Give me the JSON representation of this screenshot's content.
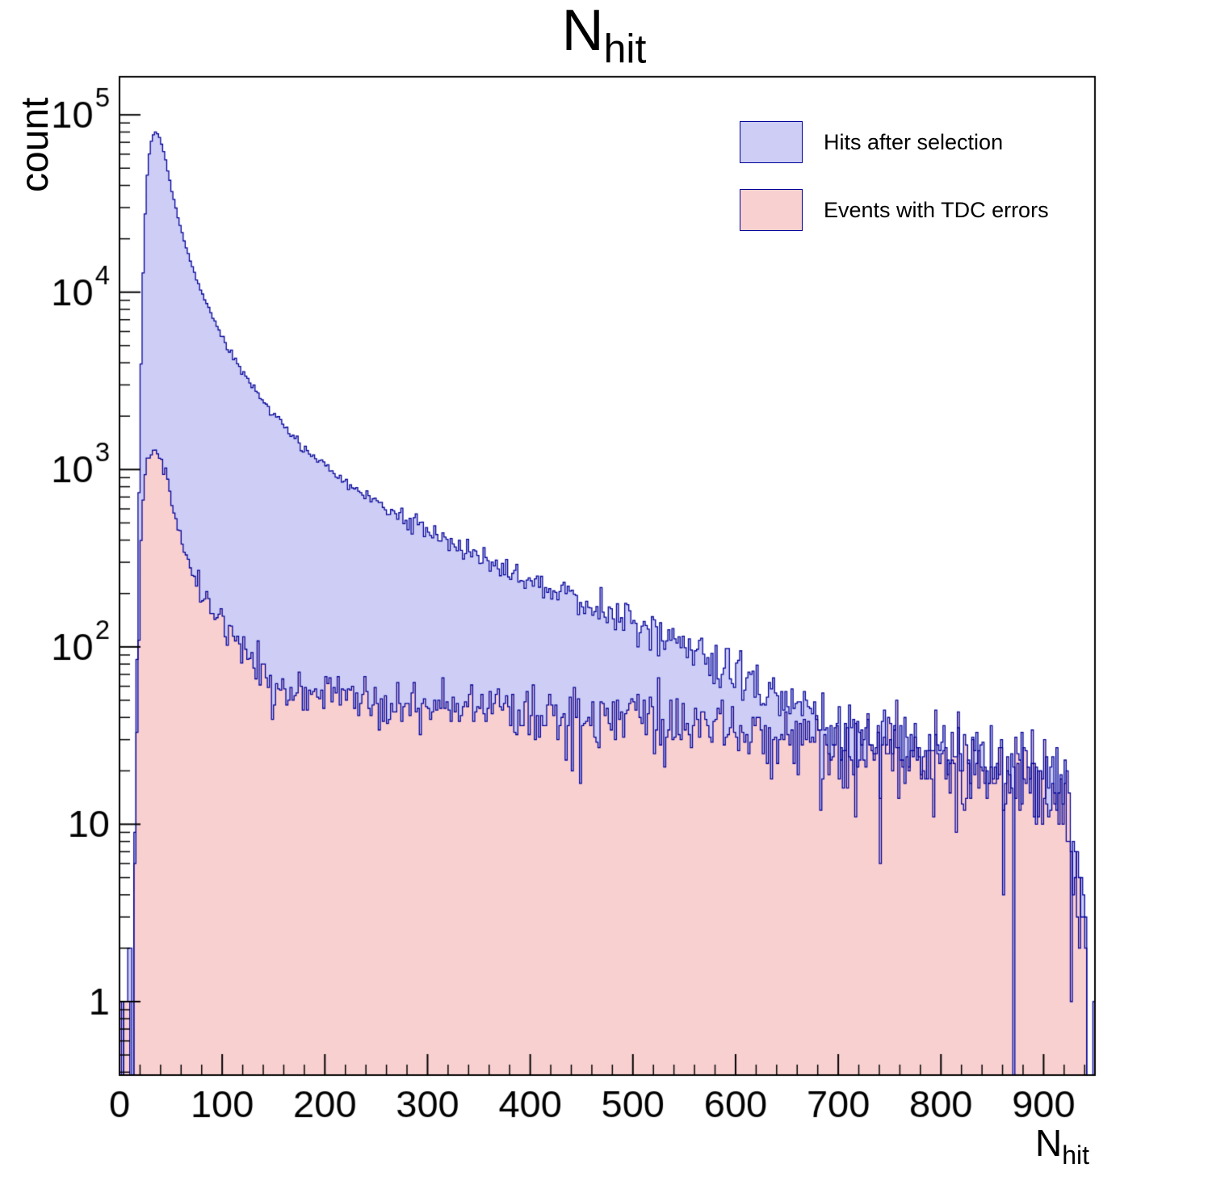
{
  "title": {
    "main": "N",
    "sub": "hit"
  },
  "y_axis_label": "count",
  "x_axis_label": {
    "main": "N",
    "sub": "hit"
  },
  "legend": {
    "items": [
      {
        "label": "Hits after selection",
        "fill": "#cdcdf5",
        "stroke": "#000099"
      },
      {
        "label": "Events with TDC errors",
        "fill": "#f9d0d0",
        "stroke": "#000099"
      }
    ]
  },
  "chart_data": {
    "type": "histogram",
    "title": "N_hit",
    "xlabel": "N_hit",
    "ylabel": "count",
    "y_scale": "log",
    "xlim": [
      0,
      950
    ],
    "ylim": [
      0.385,
      164000
    ],
    "x_ticks": [
      0,
      100,
      200,
      300,
      400,
      500,
      600,
      700,
      800,
      900
    ],
    "x_minor_step": 20,
    "y_ticks_exponents": [
      0,
      1,
      2,
      3,
      4,
      5
    ],
    "bin_width": 2,
    "noise_model": "poisson",
    "noise_scale": 1.35,
    "axis_color": "#000000",
    "series": [
      {
        "name": "Hits after selection",
        "fill": "#cdcdf5",
        "stroke": "#000099",
        "seed": 20,
        "anchors": [
          [
            3,
            0.4
          ],
          [
            6,
            0.8
          ],
          [
            9,
            0.5
          ],
          [
            12,
            0.7
          ],
          [
            14,
            2
          ],
          [
            16,
            25
          ],
          [
            18,
            300
          ],
          [
            20,
            2000
          ],
          [
            22,
            8000
          ],
          [
            24,
            20000
          ],
          [
            26,
            38000
          ],
          [
            28,
            55000
          ],
          [
            30,
            67000
          ],
          [
            32,
            75000
          ],
          [
            34,
            79000
          ],
          [
            36,
            80000
          ],
          [
            38,
            77000
          ],
          [
            40,
            72000
          ],
          [
            43,
            62000
          ],
          [
            46,
            52000
          ],
          [
            50,
            40000
          ],
          [
            54,
            31500
          ],
          [
            58,
            25000
          ],
          [
            62,
            20500
          ],
          [
            66,
            17000
          ],
          [
            70,
            14500
          ],
          [
            75,
            12000
          ],
          [
            80,
            10000
          ],
          [
            85,
            8500
          ],
          [
            90,
            7300
          ],
          [
            95,
            6350
          ],
          [
            100,
            5600
          ],
          [
            110,
            4400
          ],
          [
            120,
            3550
          ],
          [
            130,
            2950
          ],
          [
            140,
            2450
          ],
          [
            150,
            2080
          ],
          [
            160,
            1780
          ],
          [
            170,
            1530
          ],
          [
            180,
            1330
          ],
          [
            190,
            1170
          ],
          [
            200,
            1040
          ],
          [
            215,
            890
          ],
          [
            230,
            775
          ],
          [
            245,
            680
          ],
          [
            260,
            605
          ],
          [
            275,
            540
          ],
          [
            290,
            485
          ],
          [
            305,
            440
          ],
          [
            320,
            395
          ],
          [
            335,
            355
          ],
          [
            350,
            320
          ],
          [
            365,
            292
          ],
          [
            380,
            268
          ],
          [
            395,
            247
          ],
          [
            410,
            228
          ],
          [
            425,
            210
          ],
          [
            440,
            193
          ],
          [
            455,
            177
          ],
          [
            470,
            162
          ],
          [
            485,
            148
          ],
          [
            500,
            135
          ],
          [
            515,
            123
          ],
          [
            530,
            112
          ],
          [
            545,
            102
          ],
          [
            560,
            93
          ],
          [
            575,
            85
          ],
          [
            590,
            77
          ],
          [
            605,
            70
          ],
          [
            620,
            60
          ],
          [
            640,
            52
          ],
          [
            660,
            45
          ],
          [
            680,
            39
          ],
          [
            700,
            34
          ],
          [
            720,
            31
          ],
          [
            740,
            29
          ],
          [
            760,
            28
          ],
          [
            780,
            26
          ],
          [
            800,
            25
          ],
          [
            820,
            23
          ],
          [
            840,
            22
          ],
          [
            860,
            21
          ],
          [
            880,
            20
          ],
          [
            900,
            19
          ],
          [
            910,
            18
          ],
          [
            918,
            16
          ],
          [
            925,
            12
          ],
          [
            930,
            7
          ],
          [
            935,
            3.5
          ],
          [
            940,
            1.6
          ],
          [
            944,
            0.8
          ],
          [
            947,
            0.4
          ]
        ]
      },
      {
        "name": "Events with TDC errors",
        "fill": "#f9d0d0",
        "stroke": "#000099",
        "seed": 77,
        "anchors": [
          [
            3,
            0.3
          ],
          [
            6,
            0.5
          ],
          [
            9,
            0.4
          ],
          [
            12,
            0.5
          ],
          [
            14,
            1.2
          ],
          [
            16,
            8
          ],
          [
            18,
            60
          ],
          [
            20,
            280
          ],
          [
            22,
            550
          ],
          [
            24,
            820
          ],
          [
            26,
            1020
          ],
          [
            28,
            1150
          ],
          [
            30,
            1230
          ],
          [
            32,
            1280
          ],
          [
            34,
            1300
          ],
          [
            36,
            1290
          ],
          [
            38,
            1240
          ],
          [
            40,
            1150
          ],
          [
            43,
            1000
          ],
          [
            46,
            860
          ],
          [
            50,
            700
          ],
          [
            54,
            570
          ],
          [
            58,
            470
          ],
          [
            62,
            395
          ],
          [
            66,
            340
          ],
          [
            70,
            295
          ],
          [
            75,
            250
          ],
          [
            80,
            215
          ],
          [
            85,
            188
          ],
          [
            90,
            165
          ],
          [
            95,
            147
          ],
          [
            100,
            131
          ],
          [
            110,
            108
          ],
          [
            120,
            93
          ],
          [
            130,
            82
          ],
          [
            140,
            74
          ],
          [
            150,
            68
          ],
          [
            160,
            63
          ],
          [
            170,
            59
          ],
          [
            180,
            56
          ],
          [
            190,
            54
          ],
          [
            200,
            52
          ],
          [
            220,
            50
          ],
          [
            240,
            48
          ],
          [
            260,
            47
          ],
          [
            280,
            46
          ],
          [
            300,
            46
          ],
          [
            320,
            45
          ],
          [
            340,
            45
          ],
          [
            360,
            44
          ],
          [
            380,
            44
          ],
          [
            400,
            43
          ],
          [
            420,
            43
          ],
          [
            440,
            42
          ],
          [
            460,
            41
          ],
          [
            480,
            40
          ],
          [
            500,
            39
          ],
          [
            520,
            38
          ],
          [
            540,
            37
          ],
          [
            560,
            36
          ],
          [
            580,
            35
          ],
          [
            600,
            34
          ],
          [
            620,
            33
          ],
          [
            640,
            32
          ],
          [
            660,
            31
          ],
          [
            680,
            30
          ],
          [
            700,
            29
          ],
          [
            720,
            28
          ],
          [
            740,
            27
          ],
          [
            760,
            26
          ],
          [
            780,
            25
          ],
          [
            800,
            24
          ],
          [
            820,
            23
          ],
          [
            840,
            22
          ],
          [
            860,
            21
          ],
          [
            880,
            20
          ],
          [
            900,
            19
          ],
          [
            910,
            18
          ],
          [
            918,
            15
          ],
          [
            925,
            11
          ],
          [
            930,
            6
          ],
          [
            935,
            3
          ],
          [
            940,
            1.4
          ],
          [
            944,
            0.7
          ],
          [
            947,
            0.3
          ]
        ]
      }
    ]
  }
}
